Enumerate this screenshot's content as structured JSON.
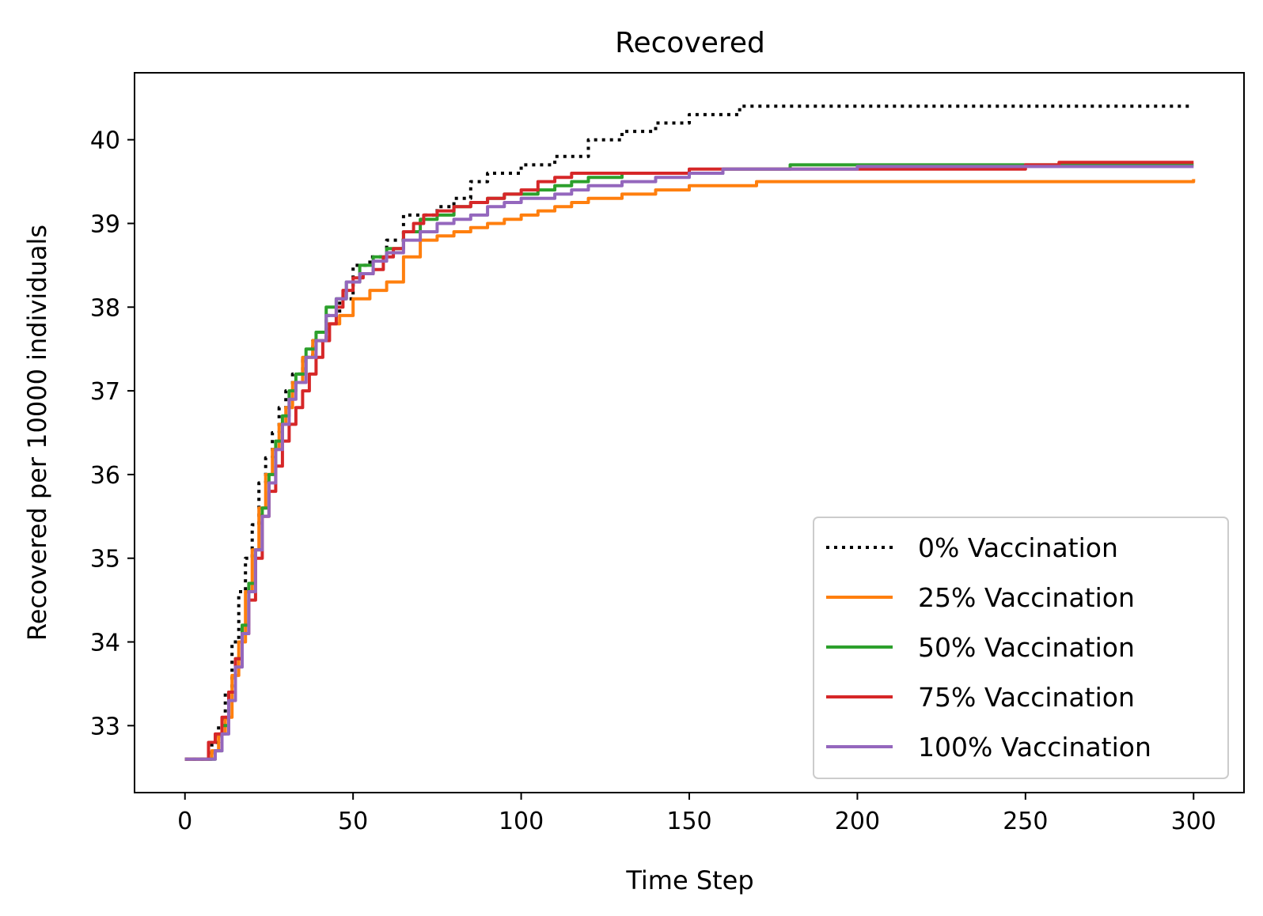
{
  "chart_data": {
    "type": "line",
    "title": "Recovered",
    "xlabel": "Time Step",
    "ylabel": "Recovered per 10000 individuals",
    "xlim": [
      -15,
      315
    ],
    "ylim": [
      32.2,
      40.8
    ],
    "xticks": [
      0,
      50,
      100,
      150,
      200,
      250,
      300
    ],
    "yticks": [
      33,
      34,
      35,
      36,
      37,
      38,
      39,
      40
    ],
    "grid": false,
    "legend_position": "lower right",
    "series": [
      {
        "name": "0% Vaccination",
        "color": "#000000",
        "style": "dotted",
        "x": [
          0,
          5,
          8,
          10,
          12,
          14,
          16,
          18,
          20,
          22,
          24,
          26,
          28,
          30,
          32,
          35,
          38,
          42,
          46,
          50,
          55,
          60,
          65,
          70,
          75,
          80,
          85,
          90,
          95,
          100,
          105,
          110,
          115,
          120,
          125,
          130,
          135,
          140,
          145,
          150,
          155,
          160,
          165,
          170,
          180,
          200,
          210,
          230,
          250,
          270,
          290,
          300
        ],
        "values": [
          32.6,
          32.6,
          32.8,
          33.0,
          33.4,
          34.0,
          34.6,
          35.0,
          35.4,
          35.9,
          36.2,
          36.5,
          36.8,
          37.0,
          37.2,
          37.4,
          37.6,
          37.9,
          38.1,
          38.5,
          38.6,
          38.8,
          39.1,
          39.1,
          39.2,
          39.3,
          39.5,
          39.6,
          39.6,
          39.7,
          39.7,
          39.8,
          39.8,
          40.0,
          40.0,
          40.1,
          40.1,
          40.2,
          40.2,
          40.3,
          40.3,
          40.3,
          40.4,
          40.4,
          40.4,
          40.4,
          40.4,
          40.4,
          40.4,
          40.4,
          40.4,
          40.4
        ]
      },
      {
        "name": "25% Vaccination",
        "color": "#ff7f0e",
        "style": "solid",
        "x": [
          0,
          6,
          8,
          10,
          12,
          14,
          16,
          18,
          20,
          22,
          24,
          26,
          28,
          30,
          32,
          35,
          38,
          42,
          46,
          50,
          55,
          60,
          65,
          70,
          75,
          80,
          85,
          90,
          95,
          100,
          105,
          110,
          115,
          120,
          125,
          130,
          140,
          150,
          160,
          170,
          180,
          200,
          250,
          290,
          300
        ],
        "values": [
          32.6,
          32.6,
          32.7,
          32.9,
          33.1,
          33.6,
          34.0,
          34.6,
          35.1,
          35.6,
          36.0,
          36.3,
          36.6,
          36.8,
          37.1,
          37.4,
          37.6,
          37.8,
          37.9,
          38.1,
          38.2,
          38.3,
          38.6,
          38.8,
          38.85,
          38.9,
          38.95,
          39.0,
          39.05,
          39.1,
          39.15,
          39.2,
          39.25,
          39.3,
          39.3,
          39.35,
          39.4,
          39.45,
          39.45,
          39.5,
          39.5,
          39.5,
          39.5,
          39.5,
          39.53
        ]
      },
      {
        "name": "50% Vaccination",
        "color": "#2ca02c",
        "style": "solid",
        "x": [
          0,
          7,
          9,
          11,
          13,
          15,
          17,
          19,
          21,
          23,
          25,
          27,
          29,
          31,
          33,
          36,
          39,
          42,
          45,
          48,
          52,
          56,
          60,
          65,
          70,
          75,
          80,
          85,
          90,
          95,
          100,
          105,
          110,
          115,
          120,
          125,
          130,
          140,
          150,
          160,
          180,
          200,
          250,
          300
        ],
        "values": [
          32.6,
          32.6,
          32.7,
          33.0,
          33.4,
          33.8,
          34.2,
          34.7,
          35.1,
          35.6,
          36.0,
          36.4,
          36.7,
          37.0,
          37.2,
          37.5,
          37.7,
          38.0,
          38.1,
          38.3,
          38.5,
          38.6,
          38.7,
          38.9,
          39.05,
          39.1,
          39.2,
          39.25,
          39.3,
          39.35,
          39.35,
          39.4,
          39.45,
          39.5,
          39.55,
          39.55,
          39.6,
          39.6,
          39.6,
          39.65,
          39.7,
          39.7,
          39.7,
          39.7
        ]
      },
      {
        "name": "75% Vaccination",
        "color": "#d62728",
        "style": "solid",
        "x": [
          0,
          5,
          7,
          9,
          11,
          13,
          15,
          17,
          19,
          21,
          23,
          25,
          27,
          29,
          31,
          33,
          35,
          37,
          39,
          41,
          43,
          45,
          47,
          50,
          53,
          56,
          59,
          62,
          65,
          68,
          71,
          75,
          80,
          85,
          90,
          95,
          100,
          105,
          110,
          115,
          120,
          130,
          140,
          150,
          200,
          250,
          260,
          300
        ],
        "values": [
          32.6,
          32.6,
          32.8,
          32.9,
          33.1,
          33.4,
          33.8,
          34.1,
          34.5,
          35.0,
          35.5,
          35.8,
          36.1,
          36.4,
          36.6,
          36.8,
          37.0,
          37.2,
          37.4,
          37.6,
          37.8,
          38.0,
          38.2,
          38.35,
          38.4,
          38.45,
          38.6,
          38.7,
          38.9,
          39.0,
          39.1,
          39.15,
          39.2,
          39.25,
          39.3,
          39.35,
          39.4,
          39.5,
          39.55,
          39.6,
          39.6,
          39.6,
          39.6,
          39.65,
          39.65,
          39.7,
          39.73,
          39.73
        ]
      },
      {
        "name": "100% Vaccination",
        "color": "#9467bd",
        "style": "solid",
        "x": [
          0,
          7,
          9,
          11,
          13,
          15,
          17,
          19,
          21,
          23,
          25,
          27,
          29,
          31,
          33,
          36,
          39,
          42,
          45,
          48,
          52,
          56,
          60,
          65,
          70,
          75,
          80,
          85,
          90,
          95,
          100,
          105,
          110,
          115,
          120,
          130,
          140,
          150,
          160,
          170,
          200,
          250,
          300
        ],
        "values": [
          32.6,
          32.6,
          32.7,
          32.9,
          33.3,
          33.7,
          34.1,
          34.6,
          35.1,
          35.5,
          35.9,
          36.3,
          36.6,
          36.9,
          37.1,
          37.4,
          37.6,
          37.9,
          38.1,
          38.3,
          38.4,
          38.55,
          38.65,
          38.8,
          38.9,
          39.0,
          39.05,
          39.1,
          39.2,
          39.25,
          39.3,
          39.3,
          39.35,
          39.4,
          39.45,
          39.5,
          39.55,
          39.6,
          39.65,
          39.65,
          39.68,
          39.68,
          39.68
        ]
      }
    ]
  }
}
